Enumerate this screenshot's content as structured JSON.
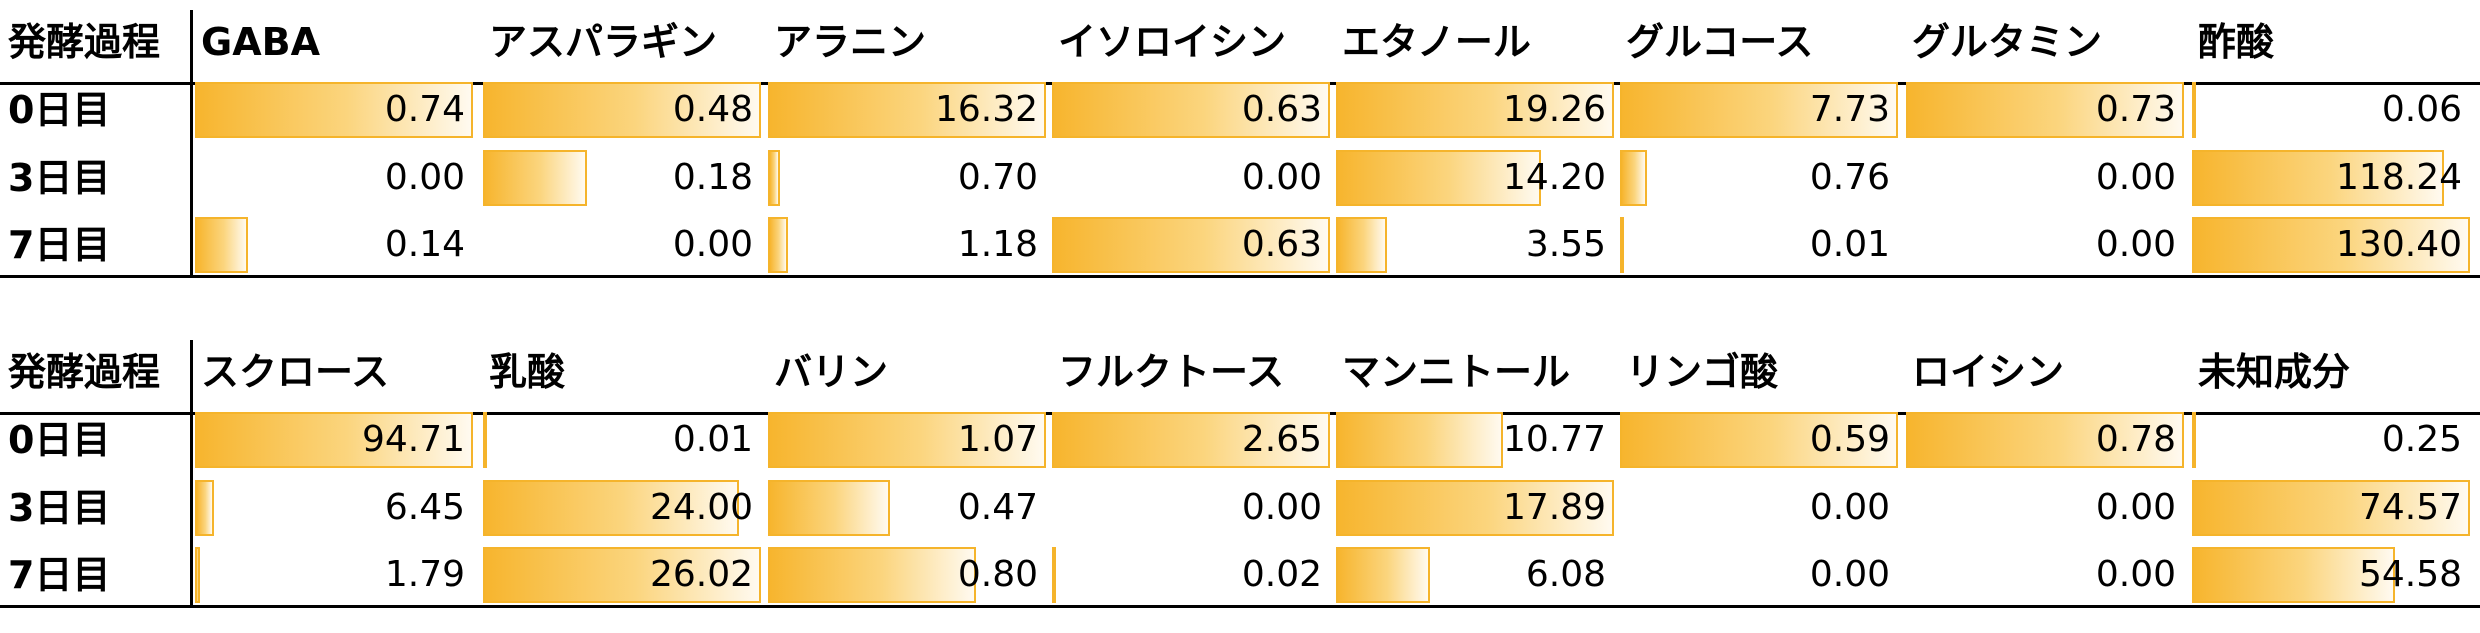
{
  "chart_data": [
    {
      "type": "table",
      "corner_label": "発酵過程",
      "rows": [
        "0日目",
        "3日目",
        "7日目"
      ],
      "columns": [
        "GABA",
        "アスパラギン",
        "アラニン",
        "イソロイシン",
        "エタノール",
        "グルコース",
        "グルタミン",
        "酢酸"
      ],
      "values": [
        [
          "0.74",
          "0.48",
          "16.32",
          "0.63",
          "19.26",
          "7.73",
          "0.73",
          "0.06"
        ],
        [
          "0.00",
          "0.18",
          "0.70",
          "0.00",
          "14.20",
          "0.76",
          "0.00",
          "118.24"
        ],
        [
          "0.14",
          "0.00",
          "1.18",
          "0.63",
          "3.55",
          "0.01",
          "0.00",
          "130.40"
        ]
      ]
    },
    {
      "type": "table",
      "corner_label": "発酵過程",
      "rows": [
        "0日目",
        "3日目",
        "7日目"
      ],
      "columns": [
        "スクロース",
        "乳酸",
        "バリン",
        "フルクトース",
        "マンニトール",
        "リンゴ酸",
        "ロイシン",
        "未知成分"
      ],
      "values": [
        [
          "94.71",
          "0.01",
          "1.07",
          "2.65",
          "10.77",
          "0.59",
          "0.78",
          "0.25"
        ],
        [
          "6.45",
          "24.00",
          "0.47",
          "0.00",
          "17.89",
          "0.00",
          "0.00",
          "74.57"
        ],
        [
          "1.79",
          "26.02",
          "0.80",
          "0.02",
          "6.08",
          "0.00",
          "0.00",
          "54.58"
        ]
      ]
    }
  ]
}
